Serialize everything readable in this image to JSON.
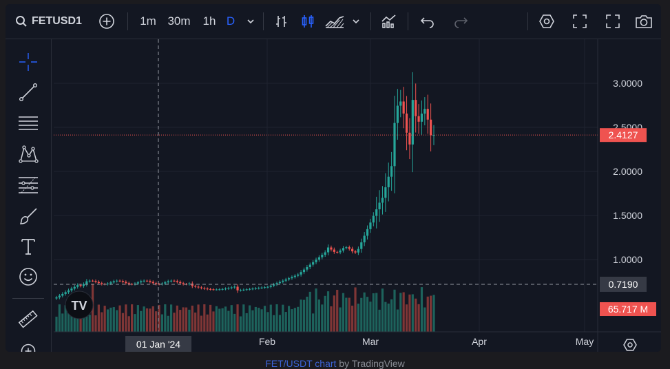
{
  "toolbar": {
    "symbol": "FETUSD1",
    "intervals": [
      "1m",
      "30m",
      "1h",
      "D"
    ],
    "active_interval": "D"
  },
  "sidebar": {
    "tools": [
      "crosshair-icon",
      "trend-line-icon",
      "horizontal-lines-icon",
      "pattern-icon",
      "fib-icon",
      "brush-icon",
      "text-icon",
      "emoji-icon",
      "ruler-icon",
      "zoom-in-icon"
    ]
  },
  "chart_data": {
    "type": "candlestick",
    "symbol": "FETUSDT",
    "yticks": [
      "3.0000",
      "2.5000",
      "2.0000",
      "1.5000",
      "1.0000"
    ],
    "xticks": [
      "Feb",
      "Mar",
      "Apr",
      "May"
    ],
    "crosshair_date": "01 Jan '24",
    "last_price": "2.4127",
    "crosshair_price": "0.7190",
    "volume_label": "65.717 M",
    "up_color": "#26a69a",
    "down_color": "#ef5350",
    "watermark": "TV"
  },
  "footer": {
    "link": "FET/USDT chart",
    "suffix": " by TradingView"
  }
}
